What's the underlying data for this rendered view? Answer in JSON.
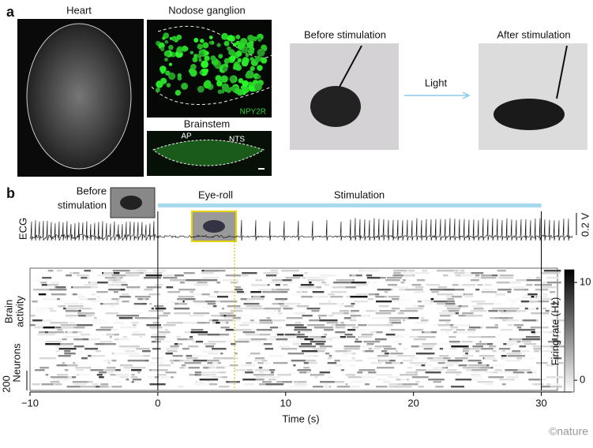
{
  "panel_a": {
    "label": "a",
    "heart": {
      "title": "Heart"
    },
    "nodose": {
      "title": "Nodose ganglion",
      "marker": "NPY2R"
    },
    "brainstem": {
      "title": "Brainstem",
      "regions": [
        "AP",
        "NTS"
      ]
    },
    "before_photo": {
      "title": "Before stimulation"
    },
    "after_photo": {
      "title": "After stimulation"
    },
    "arrow_label": "Light"
  },
  "panel_b": {
    "label": "b",
    "before_label": [
      "Before",
      "stimulation"
    ],
    "eye_roll_label": "Eye-roll",
    "stimulation_label": "Stimulation",
    "ecg_label": "ECG",
    "ecg_scale_label": "0.2 V",
    "brain_label": [
      "Brain",
      "activity"
    ],
    "neurons_label": "Neurons",
    "neurons_scale_label": "200",
    "stimulation_interval": [
      0,
      30
    ],
    "eye_roll_time": 6,
    "x_axis": {
      "label": "Time (s)",
      "xlim": [
        -10,
        32.5
      ],
      "xticks": [
        {
          "value": -10,
          "label": "−10"
        },
        0,
        10,
        20,
        30
      ]
    },
    "colorbar": {
      "label": "Firing rate (Hz)",
      "clim": [
        -1.2,
        11.3
      ],
      "ticks": [
        0,
        10
      ]
    }
  },
  "credit": "©nature"
}
